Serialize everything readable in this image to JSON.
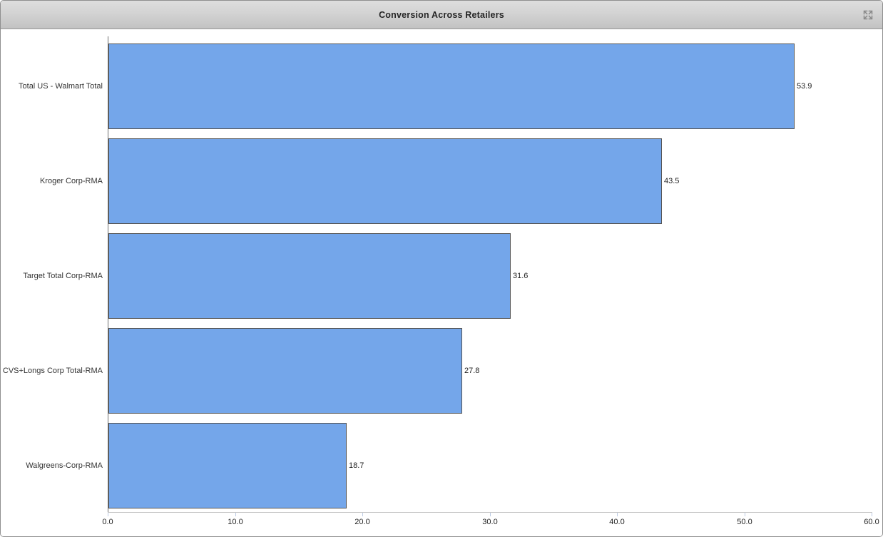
{
  "window": {
    "title": "Conversion Across Retailers"
  },
  "titlebar": {
    "maximize_icon": "maximize-icon"
  },
  "chart_data": {
    "type": "bar",
    "orientation": "horizontal",
    "title": "Conversion Across Retailers",
    "categories": [
      "Total US - Walmart Total",
      "Kroger Corp-RMA",
      "Target Total Corp-RMA",
      "CVS+Longs Corp Total-RMA",
      "Walgreens-Corp-RMA"
    ],
    "values": [
      53.9,
      43.5,
      31.6,
      27.8,
      18.7
    ],
    "value_labels": [
      "53.9",
      "43.5",
      "31.6",
      "27.8",
      "18.7"
    ],
    "xlabel": "",
    "ylabel": "",
    "xlim": [
      0,
      60
    ],
    "x_ticks": [
      0,
      10,
      20,
      30,
      40,
      50,
      60
    ],
    "x_tick_labels": [
      "0.0",
      "10.0",
      "20.0",
      "30.0",
      "40.0",
      "50.0",
      "60.0"
    ],
    "grid": false,
    "legend": "none",
    "bar_color": "#74A6EA",
    "bar_border_color": "#555555"
  }
}
